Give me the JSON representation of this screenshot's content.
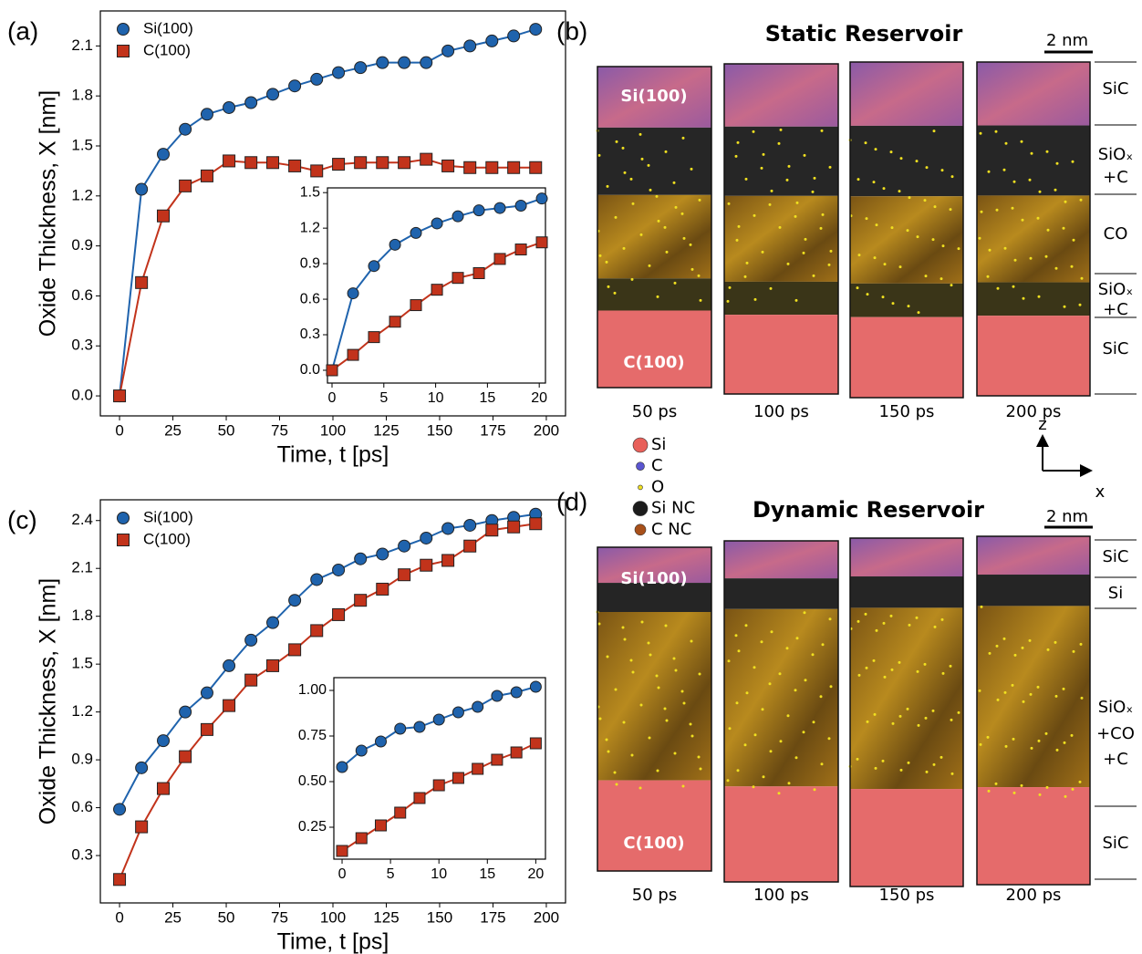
{
  "chart_data": [
    {
      "type": "line",
      "panel_label": "(a)",
      "xlabel": "Time, t [ps]",
      "ylabel": "Oxide Thickness, X [nm]",
      "xlim": [
        -9,
        209
      ],
      "ylim": [
        -0.12,
        2.31
      ],
      "xticks": [
        0,
        25,
        50,
        75,
        100,
        125,
        150,
        175,
        200
      ],
      "yticks": [
        {
          "value": 0,
          "label": "0.0"
        },
        0.3,
        0.6,
        0.9,
        1.2,
        1.5,
        1.8,
        2.1
      ],
      "legend": "upper left",
      "x": [
        0,
        10.3,
        20.5,
        30.8,
        41,
        51.3,
        61.6,
        71.8,
        82.1,
        92.4,
        102.6,
        112.9,
        123.2,
        133.4,
        143.7,
        153.9,
        164.2,
        174.5,
        184.7,
        195
      ],
      "series": [
        {
          "name": "Si(100)",
          "color": "#1f63ad",
          "marker": "circle",
          "values": [
            0,
            1.24,
            1.45,
            1.6,
            1.69,
            1.73,
            1.76,
            1.81,
            1.86,
            1.9,
            1.94,
            1.97,
            2.0,
            2.0,
            2.0,
            2.07,
            2.1,
            2.13,
            2.16,
            2.2
          ]
        },
        {
          "name": "C(100)",
          "color": "#c2331b",
          "marker": "square",
          "values": [
            0,
            0.68,
            1.08,
            1.26,
            1.32,
            1.41,
            1.4,
            1.4,
            1.38,
            1.35,
            1.39,
            1.4,
            1.4,
            1.4,
            1.42,
            1.38,
            1.37,
            1.37,
            1.37,
            1.37
          ]
        }
      ]
    },
    {
      "type": "line",
      "xlim": [
        -0.44,
        20.6
      ],
      "ylim": [
        -0.108,
        1.54
      ],
      "xticks": [
        0,
        5,
        10,
        15,
        20
      ],
      "yticks": [
        {
          "value": 0,
          "label": "0.0"
        },
        0.3,
        0.6,
        0.9,
        1.2,
        1.5
      ],
      "x": [
        0,
        2.03,
        4.05,
        6.08,
        8.1,
        10.13,
        12.15,
        14.18,
        16.2,
        18.23,
        20.25
      ],
      "series": [
        {
          "color": "#1f63ad",
          "marker": "circle",
          "values": [
            0,
            0.65,
            0.88,
            1.06,
            1.16,
            1.24,
            1.3,
            1.35,
            1.37,
            1.39,
            1.45
          ]
        },
        {
          "color": "#c2331b",
          "marker": "square",
          "values": [
            0,
            0.13,
            0.28,
            0.41,
            0.55,
            0.68,
            0.78,
            0.82,
            0.94,
            1.02,
            1.08
          ]
        }
      ]
    },
    {
      "type": "line",
      "panel_label": "(c)",
      "xlabel": "Time, t [ps]",
      "ylabel": "Oxide Thickness, X [nm]",
      "xlim": [
        -9,
        209
      ],
      "ylim": [
        0.003,
        2.53
      ],
      "xticks": [
        0,
        25,
        50,
        75,
        100,
        125,
        150,
        175,
        200
      ],
      "yticks": [
        0.3,
        0.6,
        0.9,
        1.2,
        1.5,
        1.8,
        2.1,
        2.4
      ],
      "legend": "upper left",
      "x": [
        0,
        10.3,
        20.5,
        30.8,
        41,
        51.3,
        61.6,
        71.8,
        82.1,
        92.4,
        102.6,
        112.9,
        123.2,
        133.4,
        143.7,
        153.9,
        164.2,
        174.5,
        184.7,
        195
      ],
      "series": [
        {
          "name": "Si(100)",
          "color": "#1f63ad",
          "marker": "circle",
          "values": [
            0.59,
            0.85,
            1.02,
            1.2,
            1.32,
            1.49,
            1.65,
            1.76,
            1.9,
            2.03,
            2.09,
            2.16,
            2.19,
            2.24,
            2.29,
            2.35,
            2.37,
            2.4,
            2.42,
            2.44
          ]
        },
        {
          "name": "C(100)",
          "color": "#c2331b",
          "marker": "square",
          "values": [
            0.15,
            0.48,
            0.72,
            0.92,
            1.09,
            1.24,
            1.4,
            1.49,
            1.59,
            1.71,
            1.81,
            1.9,
            1.97,
            2.06,
            2.12,
            2.15,
            2.24,
            2.34,
            2.36,
            2.38
          ]
        }
      ]
    },
    {
      "type": "line",
      "xlim": [
        -0.85,
        21.0
      ],
      "ylim": [
        0.075,
        1.07
      ],
      "xticks": [
        0,
        5,
        10,
        15,
        20
      ],
      "yticks": [
        0.25,
        {
          "value": 0.5,
          "label": "0.50"
        },
        0.75,
        {
          "value": 1,
          "label": "1.00"
        }
      ],
      "x": [
        0,
        2,
        4,
        6,
        8,
        10,
        12,
        14,
        16,
        18,
        20
      ],
      "series": [
        {
          "color": "#1f63ad",
          "marker": "circle",
          "values": [
            0.58,
            0.67,
            0.72,
            0.79,
            0.8,
            0.84,
            0.88,
            0.91,
            0.97,
            0.99,
            1.02
          ]
        },
        {
          "color": "#c2331b",
          "marker": "square",
          "values": [
            0.12,
            0.19,
            0.26,
            0.33,
            0.41,
            0.48,
            0.52,
            0.57,
            0.62,
            0.66,
            0.71
          ]
        }
      ]
    }
  ],
  "panels": {
    "b": {
      "label": "(b)",
      "title": "Static Reservoir",
      "scale": "2 nm",
      "top_slab": "Si(100)",
      "bottom_slab": "C(100)",
      "times": [
        "50 ps",
        "100 ps",
        "150 ps",
        "200 ps"
      ],
      "layers": [
        [
          "SiC"
        ],
        [
          "SiOₓ",
          "+C"
        ],
        [
          "CO"
        ],
        [
          "SiOₓ",
          "+C"
        ],
        [
          "SiC"
        ]
      ]
    },
    "d": {
      "label": "(d)",
      "title": "Dynamic Reservoir",
      "scale": "2 nm",
      "top_slab": "Si(100)",
      "bottom_slab": "C(100)",
      "times": [
        "50 ps",
        "100 ps",
        "150 ps",
        "200 ps"
      ],
      "layers": [
        [
          "SiC"
        ],
        [
          "Si"
        ],
        [
          "SiOₓ",
          "+CO",
          "+C"
        ],
        [
          "SiC"
        ]
      ]
    },
    "legend": [
      "Si",
      "C",
      "O",
      "Si NC",
      "C NC"
    ],
    "axes": [
      "z",
      "x"
    ]
  }
}
